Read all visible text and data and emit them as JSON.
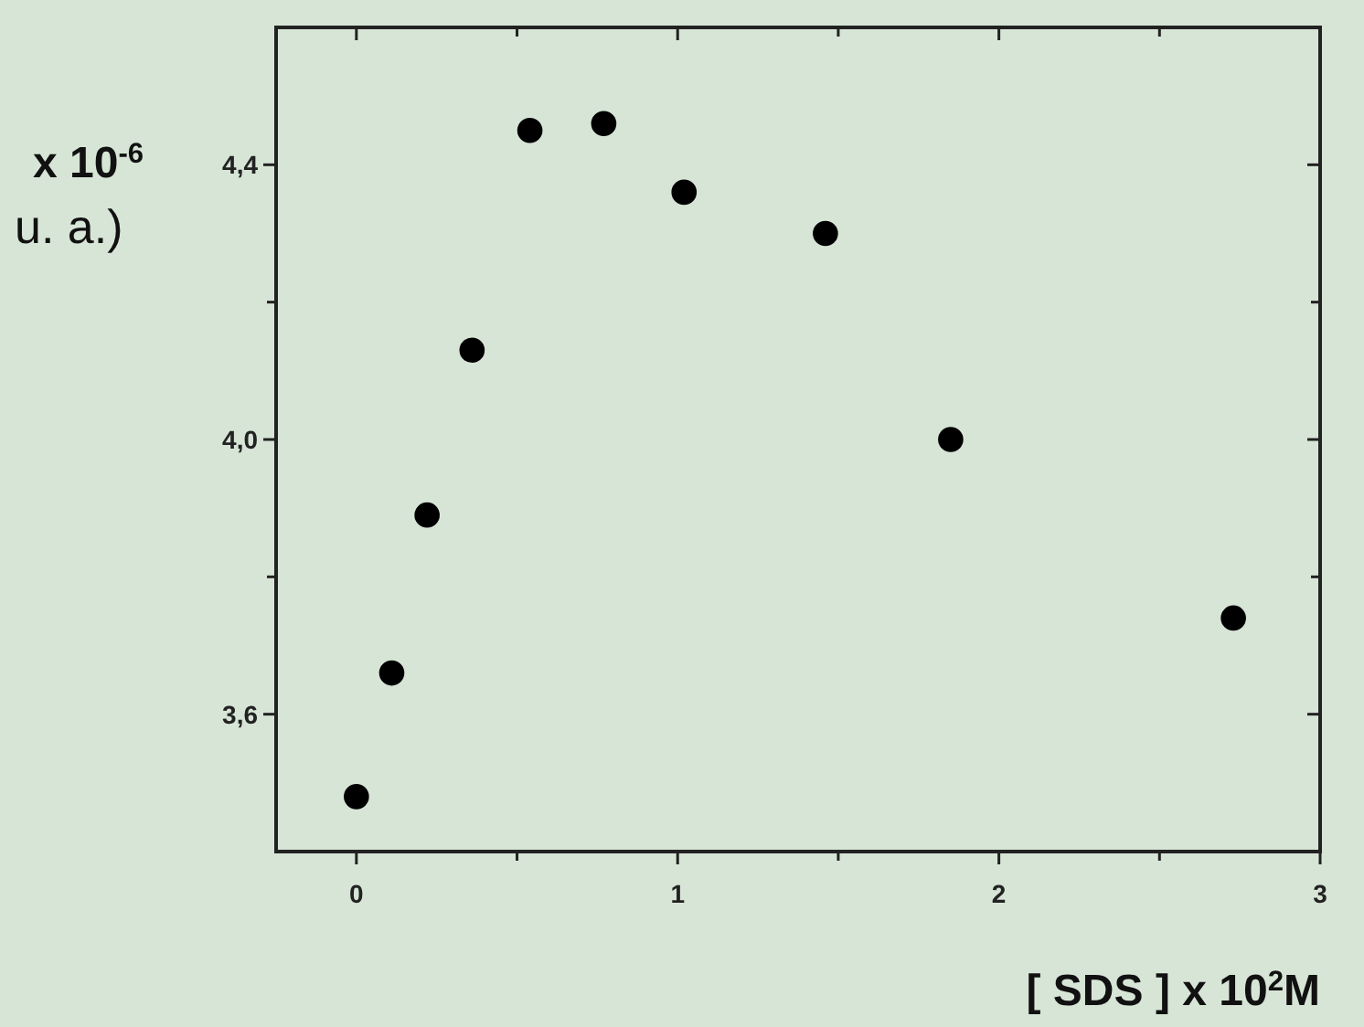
{
  "chart_data": {
    "type": "scatter",
    "xlabel": "[ SDS ] x 10$^{2}$M",
    "ylabel": "x 10$^{-6}$\nu. a.)",
    "x": [
      0,
      0.11,
      0.22,
      0.36,
      0.54,
      0.77,
      1.02,
      1.46,
      1.85,
      2.73
    ],
    "series": [
      {
        "color": "#000000",
        "values": [
          3.48,
          3.66,
          3.89,
          4.13,
          4.45,
          4.46,
          4.36,
          4.3,
          4.0,
          3.74
        ]
      }
    ],
    "xlim": [
      -0.25,
      3
    ],
    "xticks": [
      0,
      {
        "value": 0.5,
        "label": null
      },
      1,
      {
        "value": 1.5,
        "label": null
      },
      2,
      {
        "value": 2.5,
        "label": null
      },
      3
    ],
    "ylim": [
      3.4,
      4.6
    ],
    "yticks": [
      {
        "value": 3.6,
        "label": "3,6"
      },
      {
        "value": 3.8,
        "label": null
      },
      {
        "value": 4.0,
        "label": "4,0"
      },
      {
        "value": 4.2,
        "label": null
      },
      {
        "value": 4.4,
        "label": "4,4"
      }
    ],
    "grid": false,
    "marker": "circle"
  }
}
